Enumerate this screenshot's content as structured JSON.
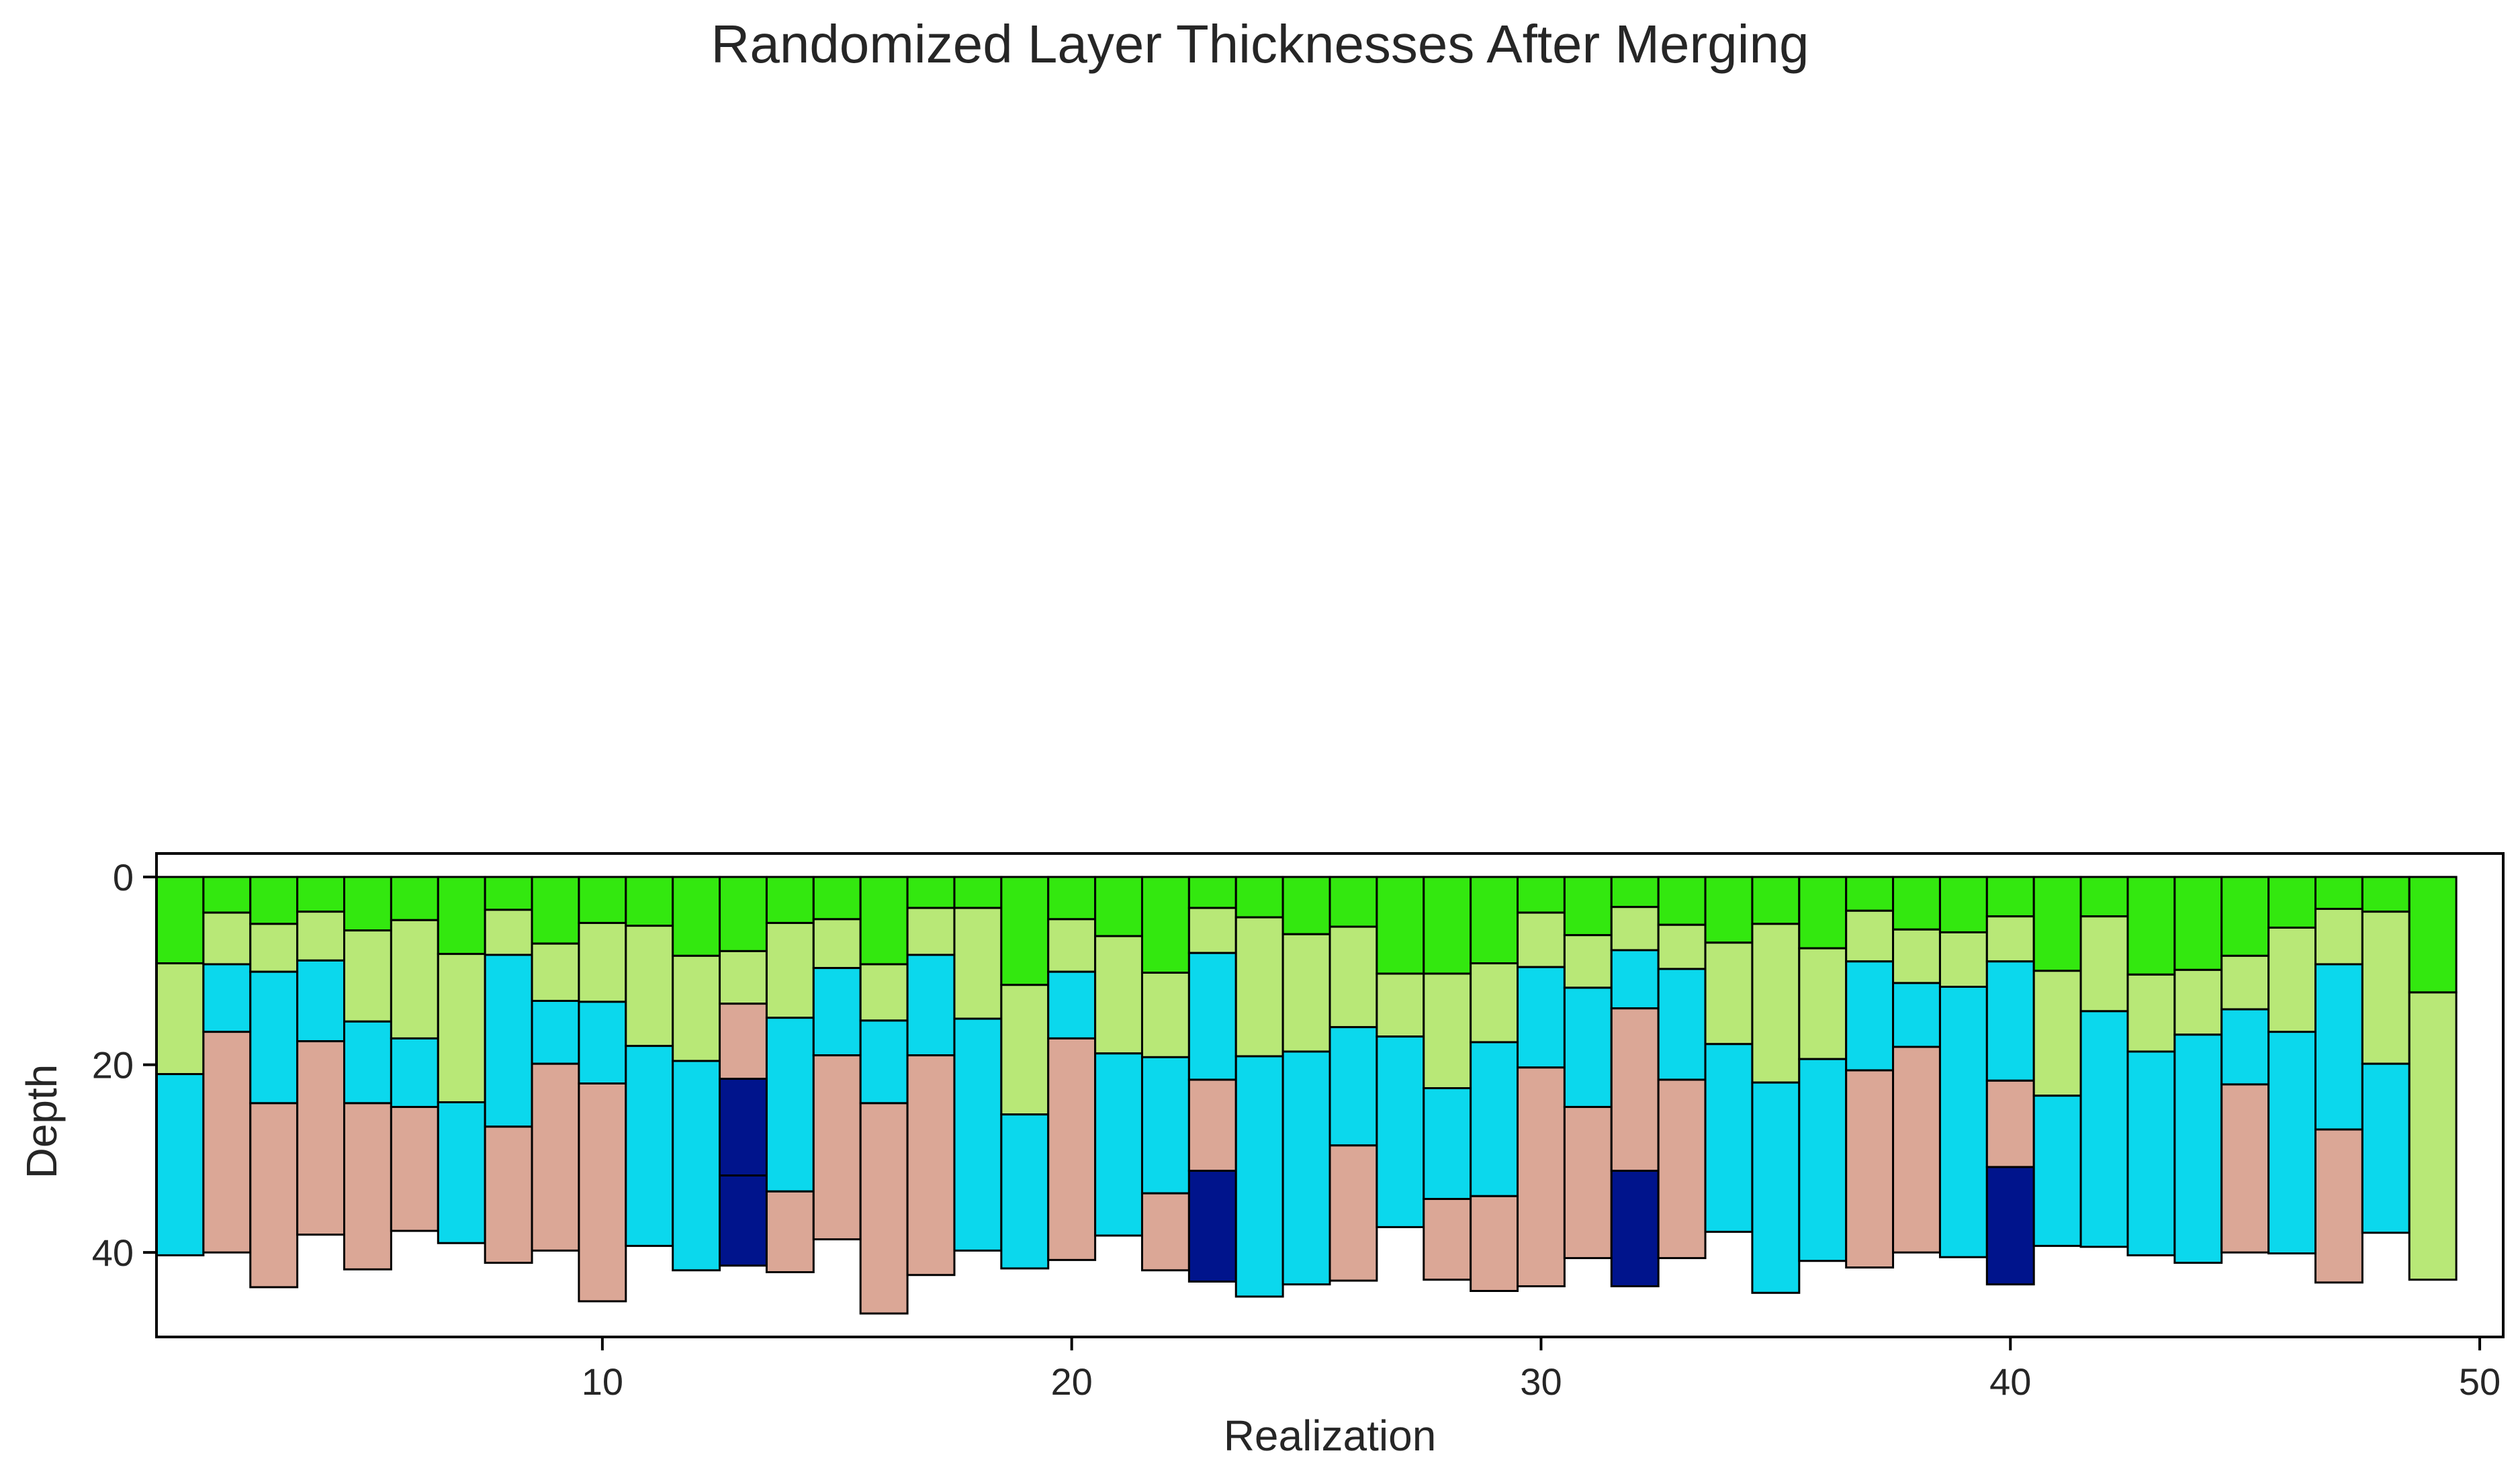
{
  "chart_data": {
    "type": "bar",
    "subtype": "stacked-column-layers",
    "title": "Randomized Layer Thicknesses After Merging",
    "xlabel": "Realization",
    "ylabel": "Depth",
    "xlim": [
      0.5,
      50.5
    ],
    "ylim": [
      49,
      -2.5
    ],
    "y_inverted": true,
    "xticks": [
      10,
      20,
      30,
      40,
      50
    ],
    "yticks": [
      0,
      20,
      40
    ],
    "grid": false,
    "legend": "none",
    "colors": {
      "A": "#33e80f",
      "B": "#b8e877",
      "C": "#0bd8ed",
      "D": "#dba796",
      "E": "#00148c"
    },
    "realizations": [
      {
        "x": 1,
        "layers": [
          [
            "A",
            9.2
          ],
          [
            "B",
            21
          ],
          [
            "C",
            40.3
          ]
        ]
      },
      {
        "x": 2,
        "layers": [
          [
            "A",
            3.8
          ],
          [
            "B",
            9.3
          ],
          [
            "C",
            16.5
          ],
          [
            "D",
            40
          ]
        ]
      },
      {
        "x": 3,
        "layers": [
          [
            "A",
            5
          ],
          [
            "B",
            10.1
          ],
          [
            "C",
            24.1
          ],
          [
            "D",
            43.7
          ]
        ]
      },
      {
        "x": 4,
        "layers": [
          [
            "A",
            3.7
          ],
          [
            "B",
            8.9
          ],
          [
            "C",
            17.5
          ],
          [
            "D",
            38.1
          ]
        ]
      },
      {
        "x": 5,
        "layers": [
          [
            "A",
            5.7
          ],
          [
            "B",
            15.4
          ],
          [
            "C",
            24.1
          ],
          [
            "D",
            41.8
          ]
        ]
      },
      {
        "x": 6,
        "layers": [
          [
            "A",
            4.6
          ],
          [
            "B",
            17.2
          ],
          [
            "C",
            24.5
          ],
          [
            "D",
            37.7
          ]
        ]
      },
      {
        "x": 7,
        "layers": [
          [
            "A",
            8.2
          ],
          [
            "B",
            24
          ],
          [
            "C",
            39
          ]
        ]
      },
      {
        "x": 8,
        "layers": [
          [
            "A",
            3.5
          ],
          [
            "B",
            8.3
          ],
          [
            "C",
            26.6
          ],
          [
            "D",
            41.1
          ]
        ]
      },
      {
        "x": 9,
        "layers": [
          [
            "A",
            7.1
          ],
          [
            "B",
            13.2
          ],
          [
            "C",
            19.9
          ],
          [
            "D",
            39.8
          ]
        ]
      },
      {
        "x": 10,
        "layers": [
          [
            "A",
            4.9
          ],
          [
            "B",
            13.3
          ],
          [
            "C",
            22
          ],
          [
            "D",
            45.2
          ]
        ]
      },
      {
        "x": 11,
        "layers": [
          [
            "A",
            5.2
          ],
          [
            "B",
            18
          ],
          [
            "C",
            39.3
          ]
        ]
      },
      {
        "x": 12,
        "layers": [
          [
            "A",
            8.4
          ],
          [
            "B",
            19.6
          ],
          [
            "C",
            41.9
          ]
        ]
      },
      {
        "x": 13,
        "layers": [
          [
            "A",
            7.9
          ],
          [
            "B",
            13.5
          ],
          [
            "D",
            21.5
          ],
          [
            "E",
            31.8
          ],
          [
            "E",
            41.4
          ]
        ]
      },
      {
        "x": 14,
        "layers": [
          [
            "A",
            4.9
          ],
          [
            "B",
            15
          ],
          [
            "C",
            33.5
          ],
          [
            "D",
            42.1
          ]
        ]
      },
      {
        "x": 15,
        "layers": [
          [
            "A",
            4.5
          ],
          [
            "B",
            9.7
          ],
          [
            "C",
            19
          ],
          [
            "D",
            38.6
          ]
        ]
      },
      {
        "x": 16,
        "layers": [
          [
            "A",
            9.3
          ],
          [
            "B",
            15.3
          ],
          [
            "C",
            24.1
          ],
          [
            "D",
            46.5
          ]
        ]
      },
      {
        "x": 17,
        "layers": [
          [
            "A",
            3.3
          ],
          [
            "B",
            8.3
          ],
          [
            "C",
            19
          ],
          [
            "D",
            42.4
          ]
        ]
      },
      {
        "x": 18,
        "layers": [
          [
            "A",
            3.3
          ],
          [
            "B",
            15.1
          ],
          [
            "C",
            39.8
          ]
        ]
      },
      {
        "x": 19,
        "layers": [
          [
            "A",
            11.5
          ],
          [
            "B",
            25.3
          ],
          [
            "C",
            41.7
          ]
        ]
      },
      {
        "x": 20,
        "layers": [
          [
            "A",
            4.5
          ],
          [
            "B",
            10.1
          ],
          [
            "C",
            17.2
          ],
          [
            "D",
            40.8
          ]
        ]
      },
      {
        "x": 21,
        "layers": [
          [
            "A",
            6.3
          ],
          [
            "B",
            18.8
          ],
          [
            "C",
            38.2
          ]
        ]
      },
      {
        "x": 22,
        "layers": [
          [
            "A",
            10.2
          ],
          [
            "B",
            19.2
          ],
          [
            "C",
            33.7
          ],
          [
            "D",
            41.9
          ]
        ]
      },
      {
        "x": 23,
        "layers": [
          [
            "A",
            3.3
          ],
          [
            "B",
            8.1
          ],
          [
            "C",
            21.6
          ],
          [
            "D",
            31.3
          ],
          [
            "E",
            43.1
          ]
        ]
      },
      {
        "x": 24,
        "layers": [
          [
            "A",
            4.3
          ],
          [
            "B",
            19.1
          ],
          [
            "C",
            44.7
          ]
        ]
      },
      {
        "x": 25,
        "layers": [
          [
            "A",
            6.1
          ],
          [
            "B",
            18.6
          ],
          [
            "C",
            43.4
          ]
        ]
      },
      {
        "x": 26,
        "layers": [
          [
            "A",
            5.3
          ],
          [
            "B",
            16
          ],
          [
            "C",
            28.6
          ],
          [
            "D",
            43
          ]
        ]
      },
      {
        "x": 27,
        "layers": [
          [
            "A",
            10.3
          ],
          [
            "B",
            17
          ],
          [
            "C",
            37.3
          ]
        ]
      },
      {
        "x": 28,
        "layers": [
          [
            "A",
            10.3
          ],
          [
            "B",
            22.5
          ],
          [
            "C",
            34.3
          ],
          [
            "D",
            42.9
          ]
        ]
      },
      {
        "x": 29,
        "layers": [
          [
            "A",
            9.2
          ],
          [
            "B",
            17.6
          ],
          [
            "C",
            34
          ],
          [
            "D",
            44.1
          ]
        ]
      },
      {
        "x": 30,
        "layers": [
          [
            "A",
            3.8
          ],
          [
            "B",
            9.6
          ],
          [
            "C",
            20.3
          ],
          [
            "D",
            43.6
          ]
        ]
      },
      {
        "x": 31,
        "layers": [
          [
            "A",
            6.2
          ],
          [
            "B",
            11.8
          ],
          [
            "C",
            24.5
          ],
          [
            "D",
            40.6
          ]
        ]
      },
      {
        "x": 32,
        "layers": [
          [
            "A",
            3.2
          ],
          [
            "B",
            7.8
          ],
          [
            "C",
            14
          ],
          [
            "D",
            31.3
          ],
          [
            "E",
            43.6
          ]
        ]
      },
      {
        "x": 33,
        "layers": [
          [
            "A",
            5.1
          ],
          [
            "B",
            9.8
          ],
          [
            "C",
            21.6
          ],
          [
            "D",
            40.6
          ]
        ]
      },
      {
        "x": 34,
        "layers": [
          [
            "A",
            7
          ],
          [
            "B",
            17.8
          ],
          [
            "C",
            37.8
          ]
        ]
      },
      {
        "x": 35,
        "layers": [
          [
            "A",
            5
          ],
          [
            "B",
            21.9
          ],
          [
            "C",
            44.3
          ]
        ]
      },
      {
        "x": 36,
        "layers": [
          [
            "A",
            7.6
          ],
          [
            "B",
            19.4
          ],
          [
            "C",
            40.9
          ]
        ]
      },
      {
        "x": 37,
        "layers": [
          [
            "A",
            3.6
          ],
          [
            "B",
            9
          ],
          [
            "C",
            20.6
          ],
          [
            "D",
            41.6
          ]
        ]
      },
      {
        "x": 38,
        "layers": [
          [
            "A",
            5.6
          ],
          [
            "B",
            11.3
          ],
          [
            "C",
            18.1
          ],
          [
            "D",
            40
          ]
        ]
      },
      {
        "x": 39,
        "layers": [
          [
            "A",
            5.9
          ],
          [
            "B",
            11.7
          ],
          [
            "C",
            40.5
          ]
        ]
      },
      {
        "x": 40,
        "layers": [
          [
            "A",
            4.2
          ],
          [
            "B",
            9
          ],
          [
            "C",
            21.7
          ],
          [
            "D",
            30.9
          ],
          [
            "E",
            43.4
          ]
        ]
      },
      {
        "x": 41,
        "layers": [
          [
            "A",
            10
          ],
          [
            "B",
            23.3
          ],
          [
            "C",
            39.3
          ]
        ]
      },
      {
        "x": 42,
        "layers": [
          [
            "A",
            4.2
          ],
          [
            "B",
            14.3
          ],
          [
            "C",
            39.4
          ]
        ]
      },
      {
        "x": 43,
        "layers": [
          [
            "A",
            10.4
          ],
          [
            "B",
            18.6
          ],
          [
            "C",
            40.3
          ]
        ]
      },
      {
        "x": 44,
        "layers": [
          [
            "A",
            9.9
          ],
          [
            "B",
            16.8
          ],
          [
            "C",
            41.1
          ]
        ]
      },
      {
        "x": 45,
        "layers": [
          [
            "A",
            8.4
          ],
          [
            "B",
            14.1
          ],
          [
            "C",
            22.1
          ],
          [
            "D",
            40
          ]
        ]
      },
      {
        "x": 46,
        "layers": [
          [
            "A",
            5.4
          ],
          [
            "B",
            16.5
          ],
          [
            "C",
            40.1
          ]
        ]
      },
      {
        "x": 47,
        "layers": [
          [
            "A",
            3.4
          ],
          [
            "B",
            9.3
          ],
          [
            "C",
            26.9
          ],
          [
            "D",
            43.2
          ]
        ]
      },
      {
        "x": 48,
        "layers": [
          [
            "A",
            3.7
          ],
          [
            "B",
            19.9
          ],
          [
            "C",
            37.9
          ]
        ]
      },
      {
        "x": 49,
        "layers": [
          [
            "A",
            12.3
          ],
          [
            "B",
            42.9
          ]
        ]
      }
    ]
  }
}
